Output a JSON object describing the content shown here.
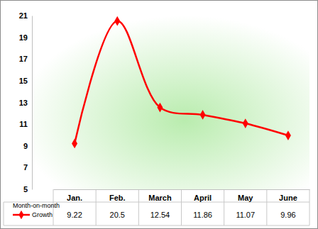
{
  "chart_data": {
    "type": "line",
    "categories": [
      "Jan.",
      "Feb.",
      "March",
      "April",
      "May",
      "June"
    ],
    "series": [
      {
        "name": "Month-on-month Growth",
        "color": "#ff0000",
        "marker": "diamond",
        "line_style": "solid",
        "values": [
          9.22,
          20.5,
          12.54,
          11.86,
          11.07,
          9.96
        ]
      }
    ],
    "ylim": [
      5,
      21
    ],
    "yticks": [
      5,
      7,
      9,
      11,
      13,
      15,
      17,
      19,
      21
    ],
    "legend": "bottom-left"
  }
}
